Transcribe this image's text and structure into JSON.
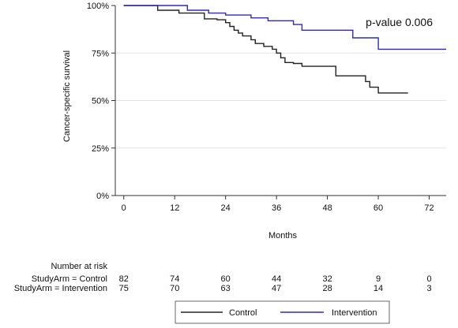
{
  "chart_data": {
    "type": "line",
    "subtype": "kaplan-meier-step",
    "xlabel": "Months",
    "ylabel": "Cancer-specific survival",
    "xlim": [
      -2,
      76
    ],
    "ylim": [
      0,
      1
    ],
    "x_ticks": [
      0,
      12,
      24,
      36,
      48,
      60,
      72
    ],
    "y_ticks": [
      0,
      0.25,
      0.5,
      0.75,
      1.0
    ],
    "y_tick_labels": [
      "0%",
      "25%",
      "50%",
      "75%",
      "100%"
    ],
    "grid": "horizontal",
    "annotation": "p-value 0.006",
    "legend": {
      "placement": "bottom",
      "entries": [
        "Control",
        "Intervention"
      ]
    },
    "series": [
      {
        "name": "Control",
        "color": "#222222",
        "x": [
          0,
          8,
          12,
          13,
          19,
          22,
          24,
          25,
          26,
          27,
          28,
          30,
          31,
          33,
          35,
          36,
          37,
          38,
          40,
          42,
          48,
          50,
          55,
          57,
          58,
          60,
          67
        ],
        "y": [
          1.0,
          0.975,
          0.975,
          0.96,
          0.93,
          0.925,
          0.91,
          0.89,
          0.87,
          0.855,
          0.84,
          0.82,
          0.8,
          0.785,
          0.77,
          0.75,
          0.725,
          0.7,
          0.695,
          0.68,
          0.68,
          0.63,
          0.63,
          0.6,
          0.57,
          0.54,
          0.54
        ]
      },
      {
        "name": "Intervention",
        "color": "#2d2db4",
        "x": [
          0,
          15,
          20,
          24,
          30,
          34,
          40,
          42,
          54,
          55,
          60,
          76
        ],
        "y": [
          1.0,
          0.975,
          0.96,
          0.95,
          0.935,
          0.92,
          0.9,
          0.87,
          0.83,
          0.83,
          0.77,
          0.77
        ]
      }
    ],
    "risk_table": {
      "title": "Number at risk",
      "times": [
        0,
        12,
        24,
        36,
        48,
        60,
        72
      ],
      "rows": [
        {
          "label": "StudyArm = Control",
          "counts": [
            "82",
            "74",
            "60",
            "44",
            "32",
            "9",
            "0"
          ]
        },
        {
          "label": "StudyArm = Intervention",
          "counts": [
            "75",
            "70",
            "63",
            "47",
            "28",
            "14",
            "3"
          ]
        }
      ]
    }
  }
}
